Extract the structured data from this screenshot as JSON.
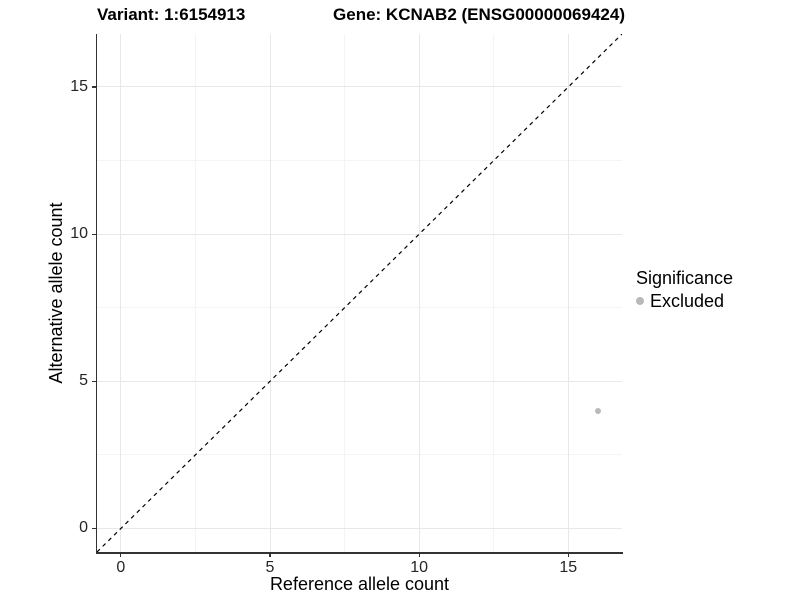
{
  "title": {
    "variant": "Variant: 1:6154913",
    "gene": "Gene: KCNAB2 (ENSG00000069424)"
  },
  "legend": {
    "title": "Significance",
    "items": [
      {
        "label": "Excluded",
        "color": "#b9b9b9"
      }
    ]
  },
  "chart_data": {
    "type": "scatter",
    "title": "Variant: 1:6154913   Gene: KCNAB2 (ENSG00000069424)",
    "xlabel": "Reference allele count",
    "ylabel": "Alternative allele count",
    "xlim": [
      -0.8,
      16.8
    ],
    "ylim": [
      -0.8,
      16.8
    ],
    "xticks": [
      0,
      5,
      10,
      15
    ],
    "yticks": [
      0,
      5,
      10,
      15
    ],
    "grid": true,
    "legend_position": "right",
    "series": [
      {
        "name": "Excluded",
        "color": "#b9b9b9",
        "points": [
          {
            "x": 16,
            "y": 4
          }
        ]
      }
    ],
    "reference_line": {
      "type": "identity",
      "style": "dashed",
      "color": "#000000"
    }
  }
}
